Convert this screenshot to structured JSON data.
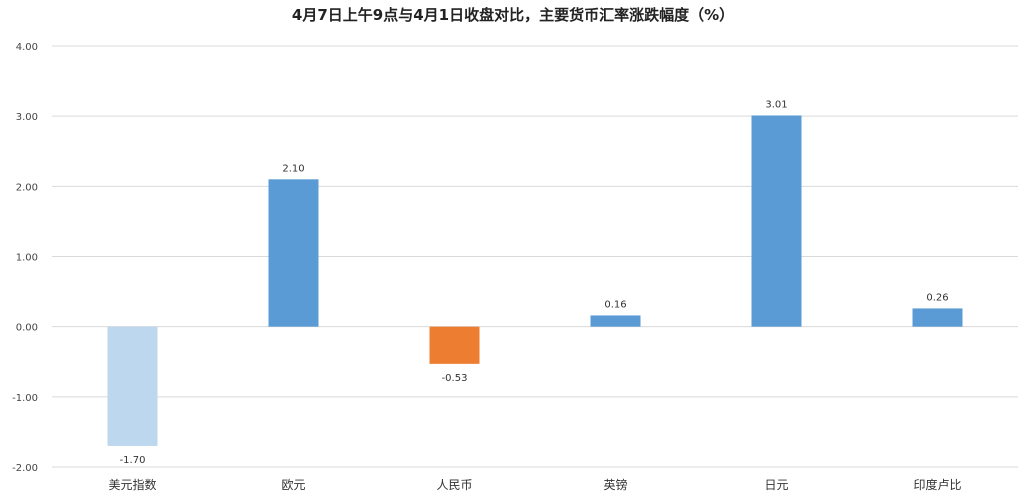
{
  "chart_data": {
    "type": "bar",
    "title": "4月7日上午9点与4月1日收盘对比，主要货币汇率涨跌幅度（%）",
    "xlabel": "",
    "ylabel": "",
    "ylim": [
      -2.0,
      4.0
    ],
    "yticks": [
      "4.00",
      "3.00",
      "2.00",
      "1.00",
      "0.00",
      "-1.00",
      "-2.00"
    ],
    "ytick_values": [
      4,
      3,
      2,
      1,
      0,
      -1,
      -2
    ],
    "categories": [
      "美元指数",
      "欧元",
      "人民币",
      "英镑",
      "日元",
      "印度卢比"
    ],
    "values": [
      -1.7,
      2.1,
      -0.53,
      0.16,
      3.01,
      0.26
    ],
    "value_labels": [
      "-1.70",
      "2.10",
      "-0.53",
      "0.16",
      "3.01",
      "0.26"
    ],
    "bar_colors": [
      "#bdd7ee",
      "#5b9bd5",
      "#ed7d31",
      "#5b9bd5",
      "#5b9bd5",
      "#5b9bd5"
    ],
    "grid": true,
    "legend": "none"
  }
}
